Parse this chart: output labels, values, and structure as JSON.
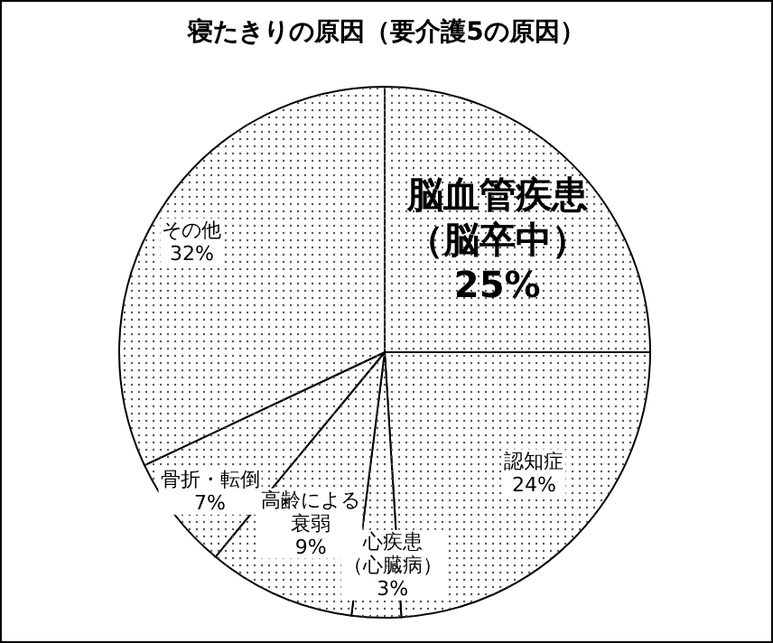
{
  "chart_data": {
    "type": "pie",
    "title": "寝たきりの原因（要介護5の原因）",
    "categories": [
      "脳血管疾患（脳卒中）",
      "認知症",
      "心疾患（心臓病）",
      "高齢による衰弱",
      "骨折・転倒",
      "その他"
    ],
    "values": [
      25,
      24,
      3,
      9,
      7,
      32
    ],
    "value_labels": [
      "25%",
      "24%",
      "3%",
      "9%",
      "7%",
      "32%"
    ],
    "colors": [
      "#ffffff",
      "#ffffff",
      "#ffffff",
      "#ffffff",
      "#ffffff",
      "#ffffff"
    ],
    "legend": false
  }
}
